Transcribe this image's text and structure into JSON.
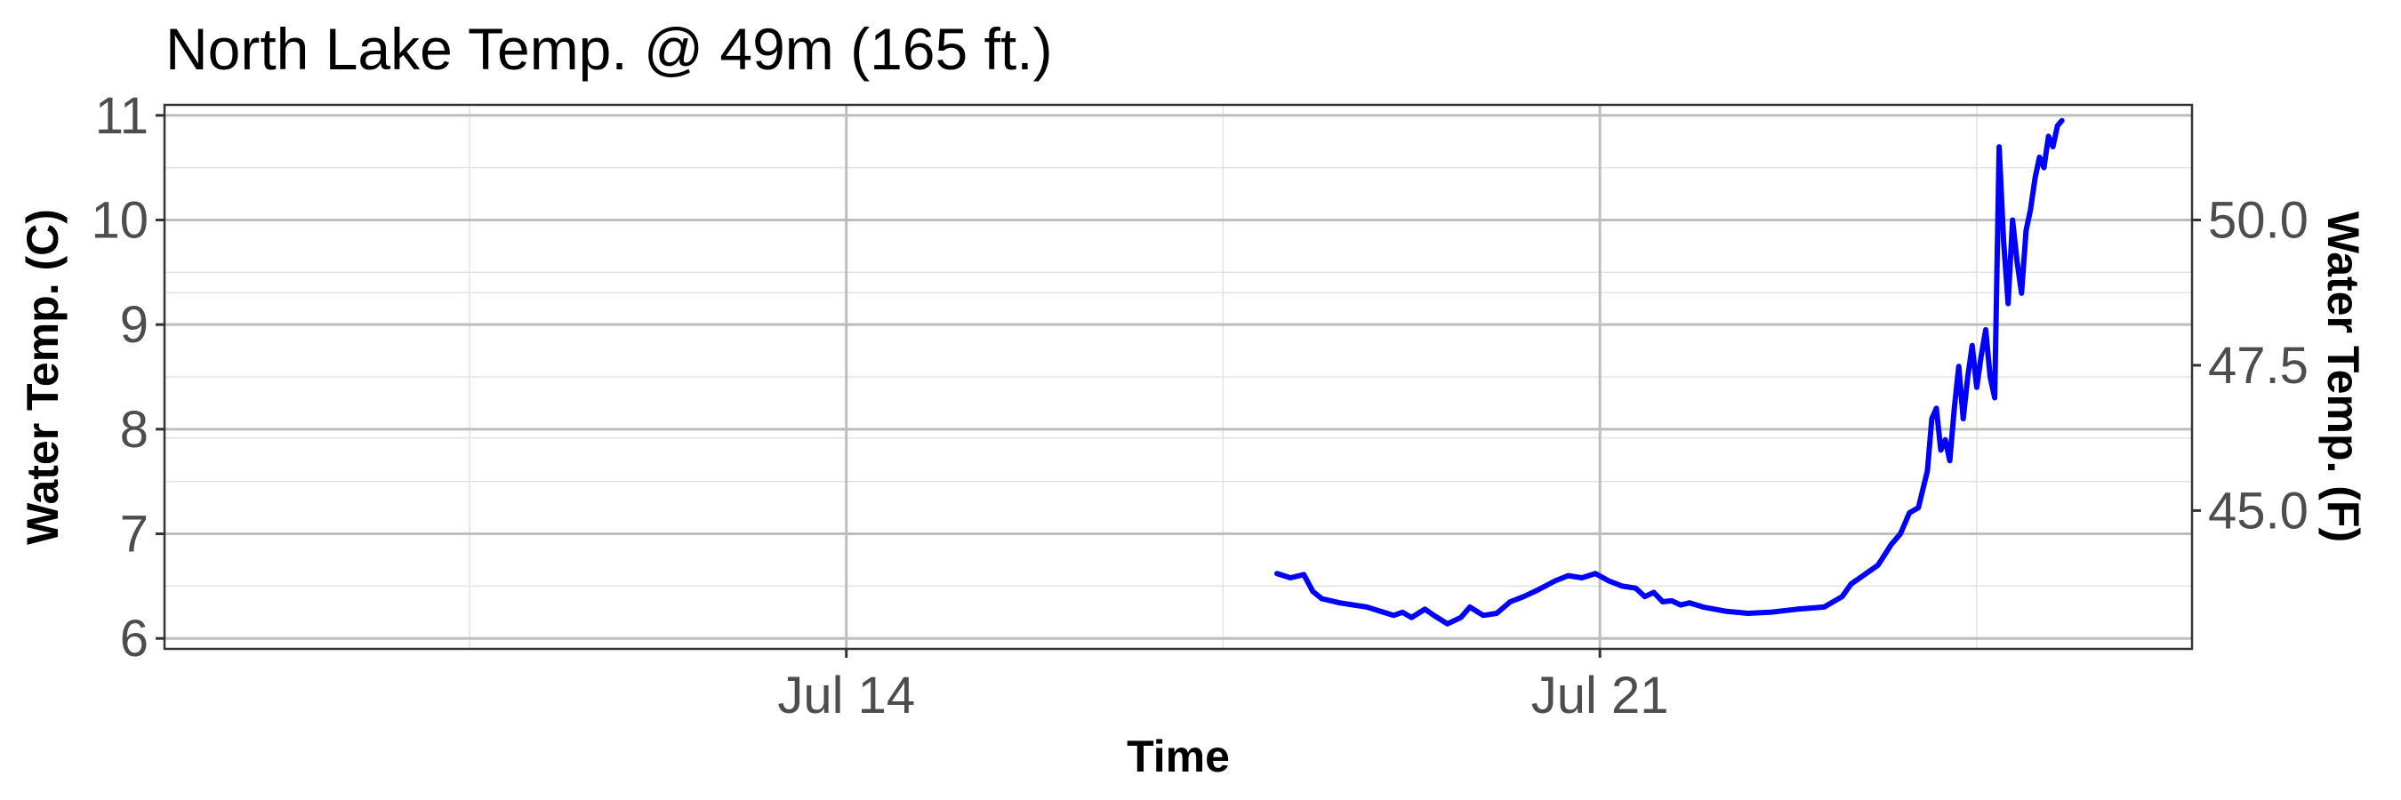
{
  "chart_data": {
    "type": "line",
    "title": "North Lake Temp. @ 49m (165 ft.)",
    "xlabel": "Time",
    "ylabel": "Water Temp. (C)",
    "ylabel_right": "Water Temp. (F)",
    "x_ticks": [
      "Jul 14",
      "Jul 21"
    ],
    "x_tick_dates": [
      "2023-07-14",
      "2023-07-21"
    ],
    "xlim": [
      "2023-07-07T16:00",
      "2023-07-26T12:00"
    ],
    "ylim": [
      5.9,
      11.1
    ],
    "y_ticks": [
      6,
      7,
      8,
      9,
      10,
      11
    ],
    "y_ticks_right": [
      "45.0",
      "47.5",
      "50.0"
    ],
    "y_ticks_right_values": [
      45.0,
      47.5,
      50.0
    ],
    "grid": true,
    "line_color": "#0000ff",
    "series": [
      {
        "x": [
          "2023-07-18T00:00",
          "2023-07-18T03:00",
          "2023-07-18T06:00",
          "2023-07-18T08:00",
          "2023-07-18T10:00",
          "2023-07-18T14:00",
          "2023-07-18T20:00",
          "2023-07-19T02:00",
          "2023-07-19T04:00",
          "2023-07-19T06:00",
          "2023-07-19T09:00",
          "2023-07-19T11:00",
          "2023-07-19T14:00",
          "2023-07-19T17:00",
          "2023-07-19T19:00",
          "2023-07-19T22:00",
          "2023-07-20T01:00",
          "2023-07-20T04:00",
          "2023-07-20T07:00",
          "2023-07-20T10:00",
          "2023-07-20T14:00",
          "2023-07-20T17:00",
          "2023-07-20T20:00",
          "2023-07-20T23:00",
          "2023-07-21T02:00",
          "2023-07-21T05:00",
          "2023-07-21T08:00",
          "2023-07-21T10:00",
          "2023-07-21T12:00",
          "2023-07-21T14:00",
          "2023-07-21T16:00",
          "2023-07-21T18:00",
          "2023-07-21T20:00",
          "2023-07-21T23:00",
          "2023-07-22T04:00",
          "2023-07-22T09:00",
          "2023-07-22T14:00",
          "2023-07-22T20:00",
          "2023-07-23T02:00",
          "2023-07-23T06:00",
          "2023-07-23T08:00",
          "2023-07-23T10:00",
          "2023-07-23T14:00",
          "2023-07-23T17:00",
          "2023-07-23T19:00",
          "2023-07-23T21:00",
          "2023-07-23T23:00",
          "2023-07-24T01:00",
          "2023-07-24T02:00",
          "2023-07-24T03:00",
          "2023-07-24T04:00",
          "2023-07-24T05:00",
          "2023-07-24T06:00",
          "2023-07-24T07:00",
          "2023-07-24T08:00",
          "2023-07-24T09:00",
          "2023-07-24T10:00",
          "2023-07-24T11:00",
          "2023-07-24T12:00",
          "2023-07-24T13:00",
          "2023-07-24T14:00",
          "2023-07-24T15:00",
          "2023-07-24T16:00",
          "2023-07-24T17:00",
          "2023-07-24T18:00",
          "2023-07-24T19:00",
          "2023-07-24T20:00",
          "2023-07-24T21:00",
          "2023-07-24T22:00",
          "2023-07-24T23:00",
          "2023-07-25T00:00",
          "2023-07-25T01:00",
          "2023-07-25T02:00",
          "2023-07-25T03:00",
          "2023-07-25T04:00",
          "2023-07-25T05:00",
          "2023-07-25T06:00",
          "2023-07-25T07:00"
        ],
        "y": [
          6.62,
          6.58,
          6.61,
          6.45,
          6.38,
          6.34,
          6.3,
          6.22,
          6.25,
          6.2,
          6.28,
          6.22,
          6.14,
          6.2,
          6.3,
          6.22,
          6.24,
          6.35,
          6.4,
          6.46,
          6.55,
          6.6,
          6.58,
          6.62,
          6.55,
          6.5,
          6.48,
          6.4,
          6.44,
          6.35,
          6.36,
          6.32,
          6.34,
          6.3,
          6.26,
          6.24,
          6.25,
          6.28,
          6.3,
          6.4,
          6.52,
          6.58,
          6.7,
          6.9,
          7.0,
          7.2,
          7.25,
          7.6,
          8.1,
          8.2,
          7.8,
          7.9,
          7.7,
          8.2,
          8.6,
          8.1,
          8.5,
          8.8,
          8.4,
          8.7,
          8.95,
          8.5,
          8.3,
          10.7,
          9.8,
          9.2,
          10.0,
          9.6,
          9.3,
          9.9,
          10.1,
          10.4,
          10.6,
          10.5,
          10.8,
          10.7,
          10.9,
          10.95
        ]
      }
    ]
  }
}
